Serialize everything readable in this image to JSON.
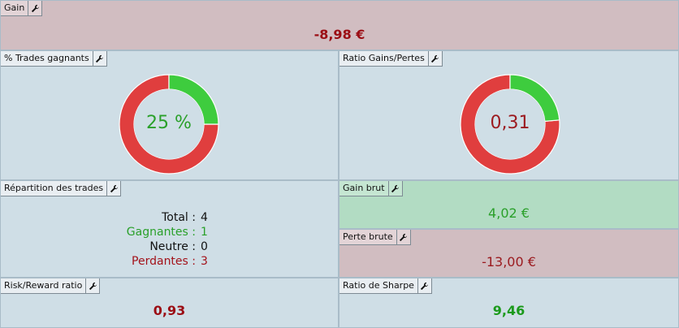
{
  "colors": {
    "loss_bg": "#d1bdc1",
    "gain_bg": "#b2dcc3",
    "panel_bg": "#cfdee6",
    "donut_green": "#3ecc3e",
    "donut_red": "#e03e3e"
  },
  "icons": {
    "settings": "wrench-icon"
  },
  "gain": {
    "title": "Gain",
    "value": "-8,98 €"
  },
  "win_rate": {
    "title": "% Trades gagnants",
    "value": "25 %",
    "fraction": 0.25
  },
  "profit_ratio": {
    "title": "Ratio Gains/Pertes",
    "value": "0,31",
    "fraction": 0.2365
  },
  "distribution": {
    "title": "Répartition des trades",
    "total_label": "Total :",
    "total_value": "4",
    "winning_label": "Gagnantes :",
    "winning_value": "1",
    "neutral_label": "Neutre :",
    "neutral_value": "0",
    "losing_label": "Perdantes :",
    "losing_value": "3"
  },
  "gross_gain": {
    "title": "Gain brut",
    "value": "4,02 €"
  },
  "gross_loss": {
    "title": "Perte brute",
    "value": "-13,00 €"
  },
  "risk_reward": {
    "title": "Risk/Reward ratio",
    "value": "0,93"
  },
  "sharpe": {
    "title": "Ratio de Sharpe",
    "value": "9,46"
  }
}
